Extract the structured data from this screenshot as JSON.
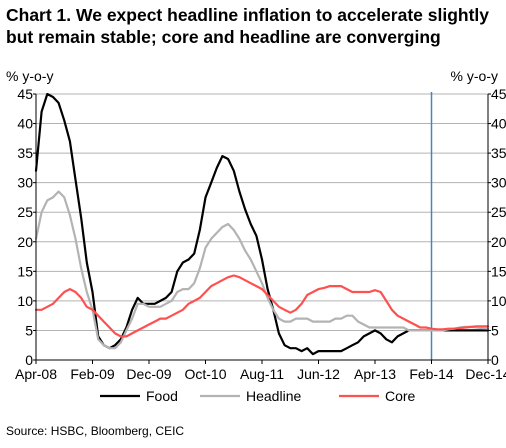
{
  "chart_data": {
    "type": "line",
    "title_lines": [
      "Chart 1. We expect headline inflation to accelerate slightly",
      "but remain stable; core and headline are converging"
    ],
    "ylabel_left": "% y-o-y",
    "ylabel_right": "% y-o-y",
    "ylim": [
      0,
      45
    ],
    "yticks": [
      0,
      5,
      10,
      15,
      20,
      25,
      30,
      35,
      40,
      45
    ],
    "xlim": [
      "2008-04",
      "2014-12"
    ],
    "xtick_labels": [
      "Apr-08",
      "Feb-09",
      "Dec-09",
      "Oct-10",
      "Aug-11",
      "Jun-12",
      "Apr-13",
      "Feb-14",
      "Dec-14"
    ],
    "xtick_dates": [
      "2008-04",
      "2009-02",
      "2009-12",
      "2010-10",
      "2011-08",
      "2012-06",
      "2013-04",
      "2014-02",
      "2014-12"
    ],
    "grid": true,
    "forecast_divider": "2014-02",
    "legend_position": "bottom",
    "source": "Source: HSBC, Bloomberg, CEIC",
    "series": [
      {
        "name": "Food",
        "color": "#000000",
        "points": [
          [
            "2008-04",
            32
          ],
          [
            "2008-05",
            42
          ],
          [
            "2008-06",
            45
          ],
          [
            "2008-07",
            44.5
          ],
          [
            "2008-08",
            43.5
          ],
          [
            "2008-09",
            40.5
          ],
          [
            "2008-10",
            37
          ],
          [
            "2008-11",
            30.5
          ],
          [
            "2008-12",
            24
          ],
          [
            "2009-01",
            16.5
          ],
          [
            "2009-02",
            11.5
          ],
          [
            "2009-03",
            4
          ],
          [
            "2009-04",
            2.5
          ],
          [
            "2009-05",
            2
          ],
          [
            "2009-06",
            2.5
          ],
          [
            "2009-07",
            3.5
          ],
          [
            "2009-08",
            5.5
          ],
          [
            "2009-09",
            8.5
          ],
          [
            "2009-10",
            10.5
          ],
          [
            "2009-11",
            9.5
          ],
          [
            "2009-12",
            9.5
          ],
          [
            "2010-01",
            9.5
          ],
          [
            "2010-02",
            10
          ],
          [
            "2010-03",
            10.5
          ],
          [
            "2010-04",
            11.5
          ],
          [
            "2010-05",
            15
          ],
          [
            "2010-06",
            16.5
          ],
          [
            "2010-07",
            17
          ],
          [
            "2010-08",
            18
          ],
          [
            "2010-09",
            22
          ],
          [
            "2010-10",
            27.5
          ],
          [
            "2010-11",
            30
          ],
          [
            "2010-12",
            32.5
          ],
          [
            "2011-01",
            34.5
          ],
          [
            "2011-02",
            34
          ],
          [
            "2011-03",
            32
          ],
          [
            "2011-04",
            28.5
          ],
          [
            "2011-05",
            25.5
          ],
          [
            "2011-06",
            23
          ],
          [
            "2011-07",
            21
          ],
          [
            "2011-08",
            17
          ],
          [
            "2011-09",
            12
          ],
          [
            "2011-10",
            8.5
          ],
          [
            "2011-11",
            4.5
          ],
          [
            "2011-12",
            2.5
          ],
          [
            "2012-01",
            2
          ],
          [
            "2012-02",
            2
          ],
          [
            "2012-03",
            1.5
          ],
          [
            "2012-04",
            2
          ],
          [
            "2012-05",
            1
          ],
          [
            "2012-06",
            1.5
          ],
          [
            "2012-07",
            1.5
          ],
          [
            "2012-08",
            1.5
          ],
          [
            "2012-09",
            1.5
          ],
          [
            "2012-10",
            1.5
          ],
          [
            "2012-11",
            2
          ],
          [
            "2012-12",
            2.5
          ],
          [
            "2013-01",
            3
          ],
          [
            "2013-02",
            4
          ],
          [
            "2013-03",
            4.5
          ],
          [
            "2013-04",
            5
          ],
          [
            "2013-05",
            4.5
          ],
          [
            "2013-06",
            3.5
          ],
          [
            "2013-07",
            3
          ],
          [
            "2013-08",
            4
          ],
          [
            "2013-09",
            4.5
          ],
          [
            "2013-10",
            5
          ],
          [
            "2013-11",
            5
          ],
          [
            "2013-12",
            5
          ],
          [
            "2014-01",
            5
          ],
          [
            "2014-02",
            5
          ],
          [
            "2014-03",
            5
          ],
          [
            "2014-04",
            5
          ],
          [
            "2014-05",
            5
          ],
          [
            "2014-06",
            5
          ],
          [
            "2014-07",
            5
          ],
          [
            "2014-08",
            5
          ],
          [
            "2014-09",
            5
          ],
          [
            "2014-10",
            5
          ],
          [
            "2014-11",
            5
          ],
          [
            "2014-12",
            5
          ]
        ]
      },
      {
        "name": "Headline",
        "color": "#b3b3b3",
        "points": [
          [
            "2008-04",
            20.5
          ],
          [
            "2008-05",
            25
          ],
          [
            "2008-06",
            27
          ],
          [
            "2008-07",
            27.5
          ],
          [
            "2008-08",
            28.5
          ],
          [
            "2008-09",
            27.5
          ],
          [
            "2008-10",
            24.5
          ],
          [
            "2008-11",
            20.5
          ],
          [
            "2008-12",
            15.5
          ],
          [
            "2009-01",
            11.5
          ],
          [
            "2009-02",
            8.5
          ],
          [
            "2009-03",
            3.5
          ],
          [
            "2009-04",
            2.5
          ],
          [
            "2009-05",
            2
          ],
          [
            "2009-06",
            2
          ],
          [
            "2009-07",
            3
          ],
          [
            "2009-08",
            5
          ],
          [
            "2009-09",
            7
          ],
          [
            "2009-10",
            9.5
          ],
          [
            "2009-11",
            9.5
          ],
          [
            "2009-12",
            9
          ],
          [
            "2010-01",
            9
          ],
          [
            "2010-02",
            9
          ],
          [
            "2010-03",
            9.5
          ],
          [
            "2010-04",
            10
          ],
          [
            "2010-05",
            11.5
          ],
          [
            "2010-06",
            12
          ],
          [
            "2010-07",
            12
          ],
          [
            "2010-08",
            13
          ],
          [
            "2010-09",
            15.5
          ],
          [
            "2010-10",
            19
          ],
          [
            "2010-11",
            20.5
          ],
          [
            "2010-12",
            21.5
          ],
          [
            "2011-01",
            22.5
          ],
          [
            "2011-02",
            23
          ],
          [
            "2011-03",
            22
          ],
          [
            "2011-04",
            20.5
          ],
          [
            "2011-05",
            18.5
          ],
          [
            "2011-06",
            17
          ],
          [
            "2011-07",
            15
          ],
          [
            "2011-08",
            13
          ],
          [
            "2011-09",
            10.5
          ],
          [
            "2011-10",
            8.5
          ],
          [
            "2011-11",
            7
          ],
          [
            "2011-12",
            6.5
          ],
          [
            "2012-01",
            6.5
          ],
          [
            "2012-02",
            7
          ],
          [
            "2012-03",
            7
          ],
          [
            "2012-04",
            7
          ],
          [
            "2012-05",
            6.5
          ],
          [
            "2012-06",
            6.5
          ],
          [
            "2012-07",
            6.5
          ],
          [
            "2012-08",
            6.5
          ],
          [
            "2012-09",
            7
          ],
          [
            "2012-10",
            7
          ],
          [
            "2012-11",
            7.5
          ],
          [
            "2012-12",
            7.5
          ],
          [
            "2013-01",
            6.5
          ],
          [
            "2013-02",
            6
          ],
          [
            "2013-03",
            5.5
          ],
          [
            "2013-04",
            5.5
          ],
          [
            "2013-05",
            5.5
          ],
          [
            "2013-06",
            5.5
          ],
          [
            "2013-07",
            5.5
          ],
          [
            "2013-08",
            5.5
          ],
          [
            "2013-09",
            5.5
          ],
          [
            "2013-10",
            5
          ],
          [
            "2013-11",
            5
          ],
          [
            "2013-12",
            5
          ],
          [
            "2014-01",
            5
          ],
          [
            "2014-02",
            5
          ],
          [
            "2014-03",
            5
          ],
          [
            "2014-04",
            5
          ],
          [
            "2014-05",
            5.2
          ],
          [
            "2014-06",
            5.3
          ],
          [
            "2014-07",
            5.5
          ],
          [
            "2014-08",
            5.6
          ],
          [
            "2014-09",
            5.6
          ],
          [
            "2014-10",
            5.5
          ],
          [
            "2014-11",
            5.4
          ],
          [
            "2014-12",
            5.3
          ]
        ]
      },
      {
        "name": "Core",
        "color": "#ff5050",
        "points": [
          [
            "2008-04",
            8.5
          ],
          [
            "2008-05",
            8.5
          ],
          [
            "2008-06",
            9
          ],
          [
            "2008-07",
            9.5
          ],
          [
            "2008-08",
            10.5
          ],
          [
            "2008-09",
            11.5
          ],
          [
            "2008-10",
            12
          ],
          [
            "2008-11",
            11.5
          ],
          [
            "2008-12",
            10.5
          ],
          [
            "2009-01",
            9
          ],
          [
            "2009-02",
            8.5
          ],
          [
            "2009-03",
            7.5
          ],
          [
            "2009-04",
            6.5
          ],
          [
            "2009-05",
            5.5
          ],
          [
            "2009-06",
            4.5
          ],
          [
            "2009-07",
            4
          ],
          [
            "2009-08",
            4
          ],
          [
            "2009-09",
            4.5
          ],
          [
            "2009-10",
            5
          ],
          [
            "2009-11",
            5.5
          ],
          [
            "2009-12",
            6
          ],
          [
            "2010-01",
            6.5
          ],
          [
            "2010-02",
            7
          ],
          [
            "2010-03",
            7
          ],
          [
            "2010-04",
            7.5
          ],
          [
            "2010-05",
            8
          ],
          [
            "2010-06",
            8.5
          ],
          [
            "2010-07",
            9.5
          ],
          [
            "2010-08",
            10
          ],
          [
            "2010-09",
            10.5
          ],
          [
            "2010-10",
            11.5
          ],
          [
            "2010-11",
            12.5
          ],
          [
            "2010-12",
            13
          ],
          [
            "2011-01",
            13.5
          ],
          [
            "2011-02",
            14
          ],
          [
            "2011-03",
            14.3
          ],
          [
            "2011-04",
            14
          ],
          [
            "2011-05",
            13.5
          ],
          [
            "2011-06",
            13
          ],
          [
            "2011-07",
            12.5
          ],
          [
            "2011-08",
            12
          ],
          [
            "2011-09",
            11
          ],
          [
            "2011-10",
            10
          ],
          [
            "2011-11",
            9
          ],
          [
            "2011-12",
            8.5
          ],
          [
            "2012-01",
            8
          ],
          [
            "2012-02",
            8.5
          ],
          [
            "2012-03",
            9.5
          ],
          [
            "2012-04",
            11
          ],
          [
            "2012-05",
            11.5
          ],
          [
            "2012-06",
            12
          ],
          [
            "2012-07",
            12.2
          ],
          [
            "2012-08",
            12.5
          ],
          [
            "2012-09",
            12.5
          ],
          [
            "2012-10",
            12.5
          ],
          [
            "2012-11",
            12
          ],
          [
            "2012-12",
            11.5
          ],
          [
            "2013-01",
            11.5
          ],
          [
            "2013-02",
            11.5
          ],
          [
            "2013-03",
            11.5
          ],
          [
            "2013-04",
            11.8
          ],
          [
            "2013-05",
            11.5
          ],
          [
            "2013-06",
            10
          ],
          [
            "2013-07",
            8.5
          ],
          [
            "2013-08",
            7.5
          ],
          [
            "2013-09",
            7
          ],
          [
            "2013-10",
            6.5
          ],
          [
            "2013-11",
            6
          ],
          [
            "2013-12",
            5.5
          ],
          [
            "2014-01",
            5.5
          ],
          [
            "2014-02",
            5.3
          ],
          [
            "2014-03",
            5.2
          ],
          [
            "2014-04",
            5.2
          ],
          [
            "2014-05",
            5.3
          ],
          [
            "2014-06",
            5.3
          ],
          [
            "2014-07",
            5.4
          ],
          [
            "2014-08",
            5.5
          ],
          [
            "2014-09",
            5.6
          ],
          [
            "2014-10",
            5.7
          ],
          [
            "2014-11",
            5.7
          ],
          [
            "2014-12",
            5.7
          ]
        ]
      }
    ]
  }
}
